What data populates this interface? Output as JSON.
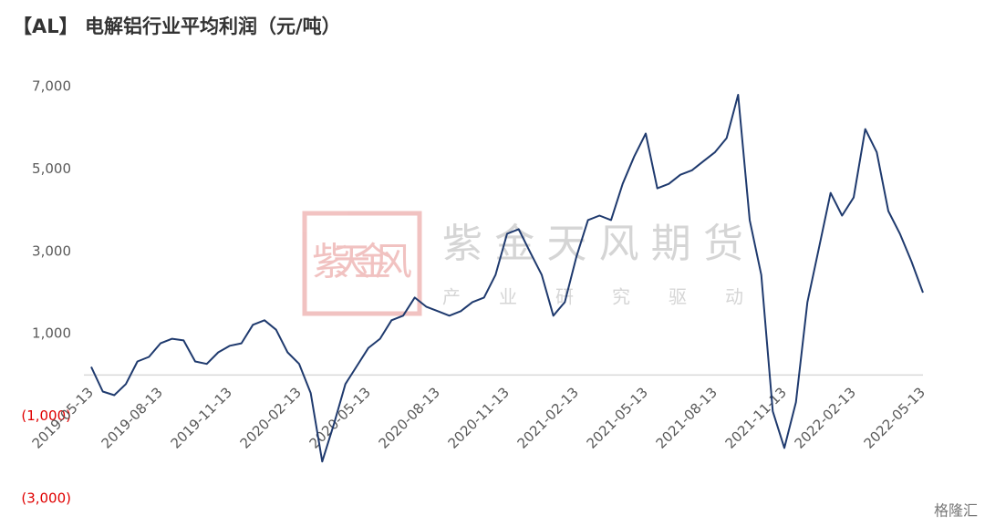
{
  "chart_data": {
    "type": "line",
    "title": "【AL】 电解铝行业平均利润（元/吨）",
    "watermark": {
      "brand": "紫金天风期货",
      "slogan": "产业研究驱动",
      "seal": "紫天金风"
    },
    "source_logo": "格隆汇",
    "categories": [
      "2019-05-13",
      null,
      null,
      null,
      null,
      null,
      "2019-08-13",
      null,
      null,
      null,
      null,
      null,
      "2019-11-13",
      null,
      null,
      null,
      null,
      null,
      "2020-02-13",
      null,
      null,
      null,
      null,
      null,
      "2020-05-13",
      null,
      null,
      null,
      null,
      null,
      "2020-08-13",
      null,
      null,
      null,
      null,
      null,
      "2020-11-13",
      null,
      null,
      null,
      null,
      null,
      "2021-02-13",
      null,
      null,
      null,
      null,
      null,
      "2021-05-13",
      null,
      null,
      null,
      null,
      null,
      "2021-08-13",
      null,
      null,
      null,
      null,
      null,
      "2021-11-13",
      null,
      null,
      null,
      null,
      null,
      "2022-02-13",
      null,
      null,
      null,
      null,
      null,
      "2022-05-13"
    ],
    "series": [
      {
        "name": "电解铝行业平均利润",
        "color": "#1f3a6e",
        "values": [
          200,
          -400,
          -490,
          -220,
          330,
          440,
          770,
          880,
          840,
          330,
          270,
          550,
          710,
          770,
          1220,
          1330,
          1100,
          550,
          270,
          -440,
          -2100,
          -1200,
          -220,
          220,
          660,
          880,
          1330,
          1440,
          1880,
          1660,
          1550,
          1440,
          1550,
          1770,
          1880,
          2430,
          3430,
          3540,
          2980,
          2430,
          1440,
          1770,
          2870,
          3760,
          3870,
          3760,
          4640,
          5300,
          5860,
          4530,
          4640,
          4860,
          4970,
          5190,
          5410,
          5750,
          6800,
          3760,
          2430,
          -880,
          -1770,
          -660,
          1770,
          3090,
          4420,
          3870,
          4310,
          5970,
          5410,
          3980,
          3430,
          2760,
          2000
        ]
      }
    ],
    "ylim": [
      -3000,
      7000
    ],
    "yticks": [
      {
        "value": -3000,
        "label": "(3,000)"
      },
      {
        "value": -1000,
        "label": "(1,000)"
      },
      {
        "value": 1000,
        "label": "1,000"
      },
      {
        "value": 3000,
        "label": "3,000"
      },
      {
        "value": 5000,
        "label": "5,000"
      },
      {
        "value": 7000,
        "label": "7,000"
      }
    ],
    "negative_label_color": "#e00000"
  }
}
